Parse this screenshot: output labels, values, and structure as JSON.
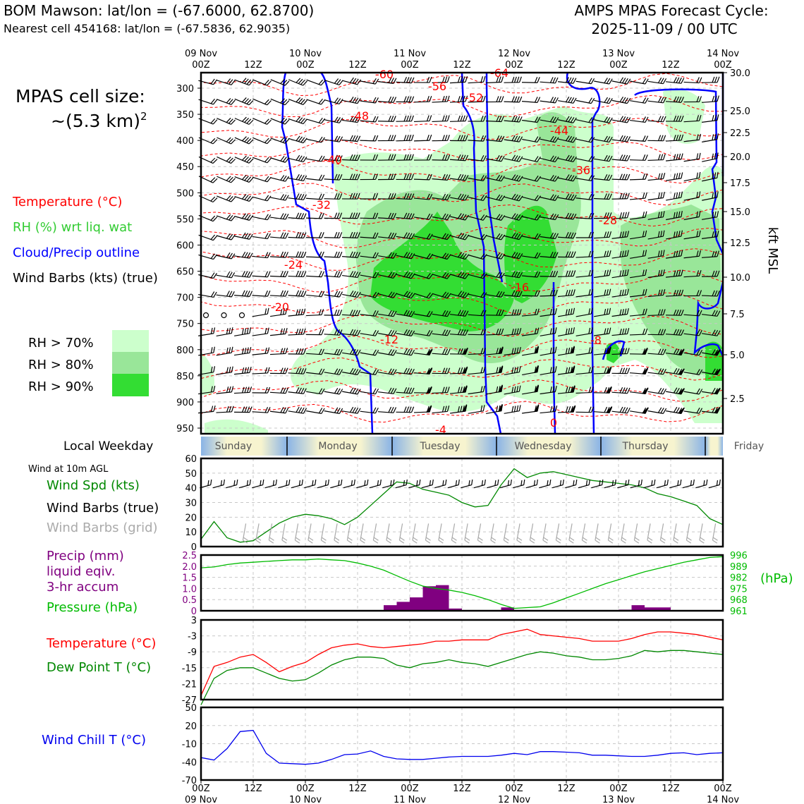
{
  "header": {
    "station_line": "BOM Mawson: lat/lon = (-67.6000, 62.8700)",
    "cell_line": "Nearest cell 454168: lat/lon = (-67.5836, 62.9035)",
    "cycle_line1": "AMPS MPAS Forecast Cycle:",
    "cycle_line2": "2025-11-09 / 00 UTC"
  },
  "left_labels": {
    "cell_size_1": "MPAS cell size:",
    "cell_size_2": "~(5.3 km)",
    "cell_size_exp": "2",
    "temperature": "Temperature (°C)",
    "rh": "RH (%) wrt liq. wat",
    "cloud": "Cloud/Precip outline",
    "wind": "Wind Barbs (kts) (true)",
    "rh70": "RH > 70%",
    "rh80": "RH > 80%",
    "rh90": "RH > 90%",
    "weekday": "Local Weekday",
    "wind10m": "Wind at 10m AGL",
    "wind_spd": "Wind Spd (kts)",
    "wind_true": "Wind Barbs (true)",
    "wind_grid": "Wind Barbs (grid)",
    "precip1": "Precip (mm)",
    "precip2": "liquid eqiv.",
    "precip3": "3-hr accum",
    "pressure": "Pressure (hPa)",
    "temp2": "Temperature (°C)",
    "dew": "Dew Point T (°C)",
    "chill": "Wind Chill T (°C)",
    "hpa_unit": "(hPa)",
    "kft": "kft MSL"
  },
  "colors": {
    "temp": "#ff0000",
    "rh_label": "#33cc33",
    "cloud": "#0000ff",
    "rh70": "#ccffcc",
    "rh80": "#99e699",
    "rh90": "#33dd33",
    "wind_spd": "#008800",
    "precip": "#800080",
    "pressure": "#00bb00",
    "dew": "#008800",
    "chill": "#0000ee",
    "grid_barb": "#aaaaaa"
  },
  "time_axis": {
    "top_dates": [
      "09 Nov",
      "",
      "10 Nov",
      "",
      "11 Nov",
      "",
      "12 Nov",
      "",
      "13 Nov",
      "",
      "14 Nov"
    ],
    "top_hours": [
      "00Z",
      "12Z",
      "00Z",
      "12Z",
      "00Z",
      "12Z",
      "00Z",
      "12Z",
      "00Z",
      "12Z",
      "00Z"
    ],
    "bottom_hours": [
      "00Z",
      "12Z",
      "00Z",
      "12Z",
      "00Z",
      "12Z",
      "00Z",
      "12Z",
      "00Z",
      "12Z",
      "00Z"
    ],
    "bottom_dates": [
      "09 Nov",
      "",
      "10 Nov",
      "",
      "11 Nov",
      "",
      "12 Nov",
      "",
      "13 Nov",
      "",
      "14 Nov"
    ]
  },
  "weekdays": [
    "Sunday",
    "Monday",
    "Tuesday",
    "Wednesday",
    "Thursday",
    "Friday"
  ],
  "chart_data": [
    {
      "type": "heatmap",
      "panel": "cross-section",
      "y_left_ticks": [
        300,
        350,
        400,
        450,
        500,
        550,
        600,
        650,
        700,
        750,
        800,
        850,
        900,
        950
      ],
      "y_right_ticks": [
        "30.0",
        "25.0",
        "22.5",
        "20.0",
        "17.5",
        "15.0",
        "12.5",
        "10.0",
        "7.5",
        "5.0",
        "2.5"
      ],
      "temp_labels": [
        "-56",
        "-52",
        "-48",
        "-44",
        "-40",
        "-36",
        "-32",
        "-28",
        "-24",
        "-20",
        "-16",
        "-12",
        "-8",
        "0",
        "-60",
        "-64",
        "-4"
      ]
    },
    {
      "type": "line",
      "panel": "wind",
      "ylim": [
        0,
        60
      ],
      "y_ticks": [
        "60",
        "50",
        "40",
        "30",
        "20",
        "10",
        "0"
      ],
      "x_hours": [
        0,
        3,
        6,
        9,
        12,
        15,
        18,
        21,
        24,
        27,
        30,
        33,
        36,
        39,
        42,
        45,
        48,
        51,
        54,
        57,
        60,
        63,
        66,
        69,
        72,
        75,
        78,
        81,
        84,
        87,
        90,
        93,
        96,
        99,
        102,
        105,
        108,
        111,
        114,
        117,
        120
      ],
      "series": [
        {
          "name": "Wind Spd (kts)",
          "values": [
            5,
            17,
            6,
            3,
            4,
            10,
            16,
            20,
            22,
            21,
            19,
            15,
            20,
            28,
            36,
            44,
            43,
            39,
            37,
            35,
            30,
            27,
            28,
            42,
            53,
            47,
            50,
            51,
            49,
            47,
            45,
            44,
            43,
            42,
            40,
            36,
            34,
            31,
            28,
            19,
            15
          ]
        }
      ]
    },
    {
      "type": "bar",
      "panel": "precip-pressure",
      "precip_ylim": [
        0,
        2.5
      ],
      "precip_ticks": [
        "2.5",
        "2.0",
        "1.5",
        "1.0",
        "0.5",
        "0"
      ],
      "pressure_ticks": [
        "996",
        "989",
        "982",
        "975",
        "968",
        "961"
      ],
      "precip_hours": [
        45,
        48,
        51,
        54,
        57,
        60,
        72,
        99,
        102,
        105,
        108
      ],
      "precip_values": [
        0.25,
        0.4,
        0.6,
        1.1,
        1.15,
        0.1,
        0.15,
        0.05,
        0.25,
        0.15,
        0.15
      ],
      "series": [
        {
          "name": "Pressure (hPa)",
          "values": [
            988,
            988.5,
            990,
            991,
            991.5,
            992,
            992.5,
            993,
            993,
            993.5,
            993,
            992.5,
            991,
            989,
            986.5,
            983,
            979.5,
            976.5,
            975,
            974,
            972.5,
            970.5,
            968,
            965,
            962.5,
            963,
            963.5,
            966,
            969,
            972,
            975,
            978,
            980.5,
            983,
            985.5,
            987.5,
            989.5,
            991.5,
            993,
            994.5,
            995
          ]
        }
      ]
    },
    {
      "type": "line",
      "panel": "temperature",
      "ylim": [
        -27,
        3
      ],
      "y_ticks": [
        "3",
        "-3",
        "-9",
        "-15",
        "-21",
        "-27"
      ],
      "series": [
        {
          "name": "Temperature (°C)",
          "values": [
            -25.5,
            -14.5,
            -13,
            -11,
            -10,
            -13,
            -16.5,
            -14.5,
            -13,
            -10,
            -7.5,
            -6.5,
            -6,
            -7,
            -7.5,
            -7,
            -6.5,
            -6,
            -5,
            -5,
            -4.5,
            -4.5,
            -4.5,
            -2.5,
            -1.5,
            -0.5,
            -2.5,
            -3,
            -3.5,
            -4,
            -5,
            -5,
            -5,
            -4,
            -2.5,
            -1.5,
            -1.5,
            -2,
            -2.5,
            -3.5,
            -4.5
          ]
        },
        {
          "name": "Dew Point T (°C)",
          "values": [
            -29,
            -19,
            -16,
            -15,
            -15,
            -17,
            -19,
            -20,
            -19.5,
            -17,
            -14,
            -12,
            -11,
            -11,
            -11.5,
            -14,
            -15,
            -13.5,
            -13,
            -12,
            -13,
            -13.5,
            -14.5,
            -13,
            -11.5,
            -10,
            -9,
            -9.5,
            -10.5,
            -11,
            -12,
            -12,
            -11.5,
            -10.5,
            -8.5,
            -9,
            -8.5,
            -8.5,
            -9,
            -9.5,
            -10
          ]
        }
      ]
    },
    {
      "type": "line",
      "panel": "wind-chill",
      "ylim": [
        -70,
        50
      ],
      "y_ticks": [
        "50",
        "20",
        "-10",
        "-40",
        "-70"
      ],
      "series": [
        {
          "name": "Wind Chill T (°C)",
          "values": [
            -33,
            -37,
            -18,
            10,
            12,
            -26,
            -42,
            -43,
            -44,
            -42,
            -36,
            -28,
            -27,
            -22,
            -31,
            -35,
            -36,
            -36,
            -34,
            -32,
            -31,
            -31,
            -31,
            -29,
            -26,
            -28,
            -23,
            -23,
            -24,
            -25,
            -29,
            -29,
            -30,
            -31,
            -31,
            -29,
            -26,
            -25,
            -28,
            -26,
            -25
          ]
        }
      ]
    }
  ]
}
